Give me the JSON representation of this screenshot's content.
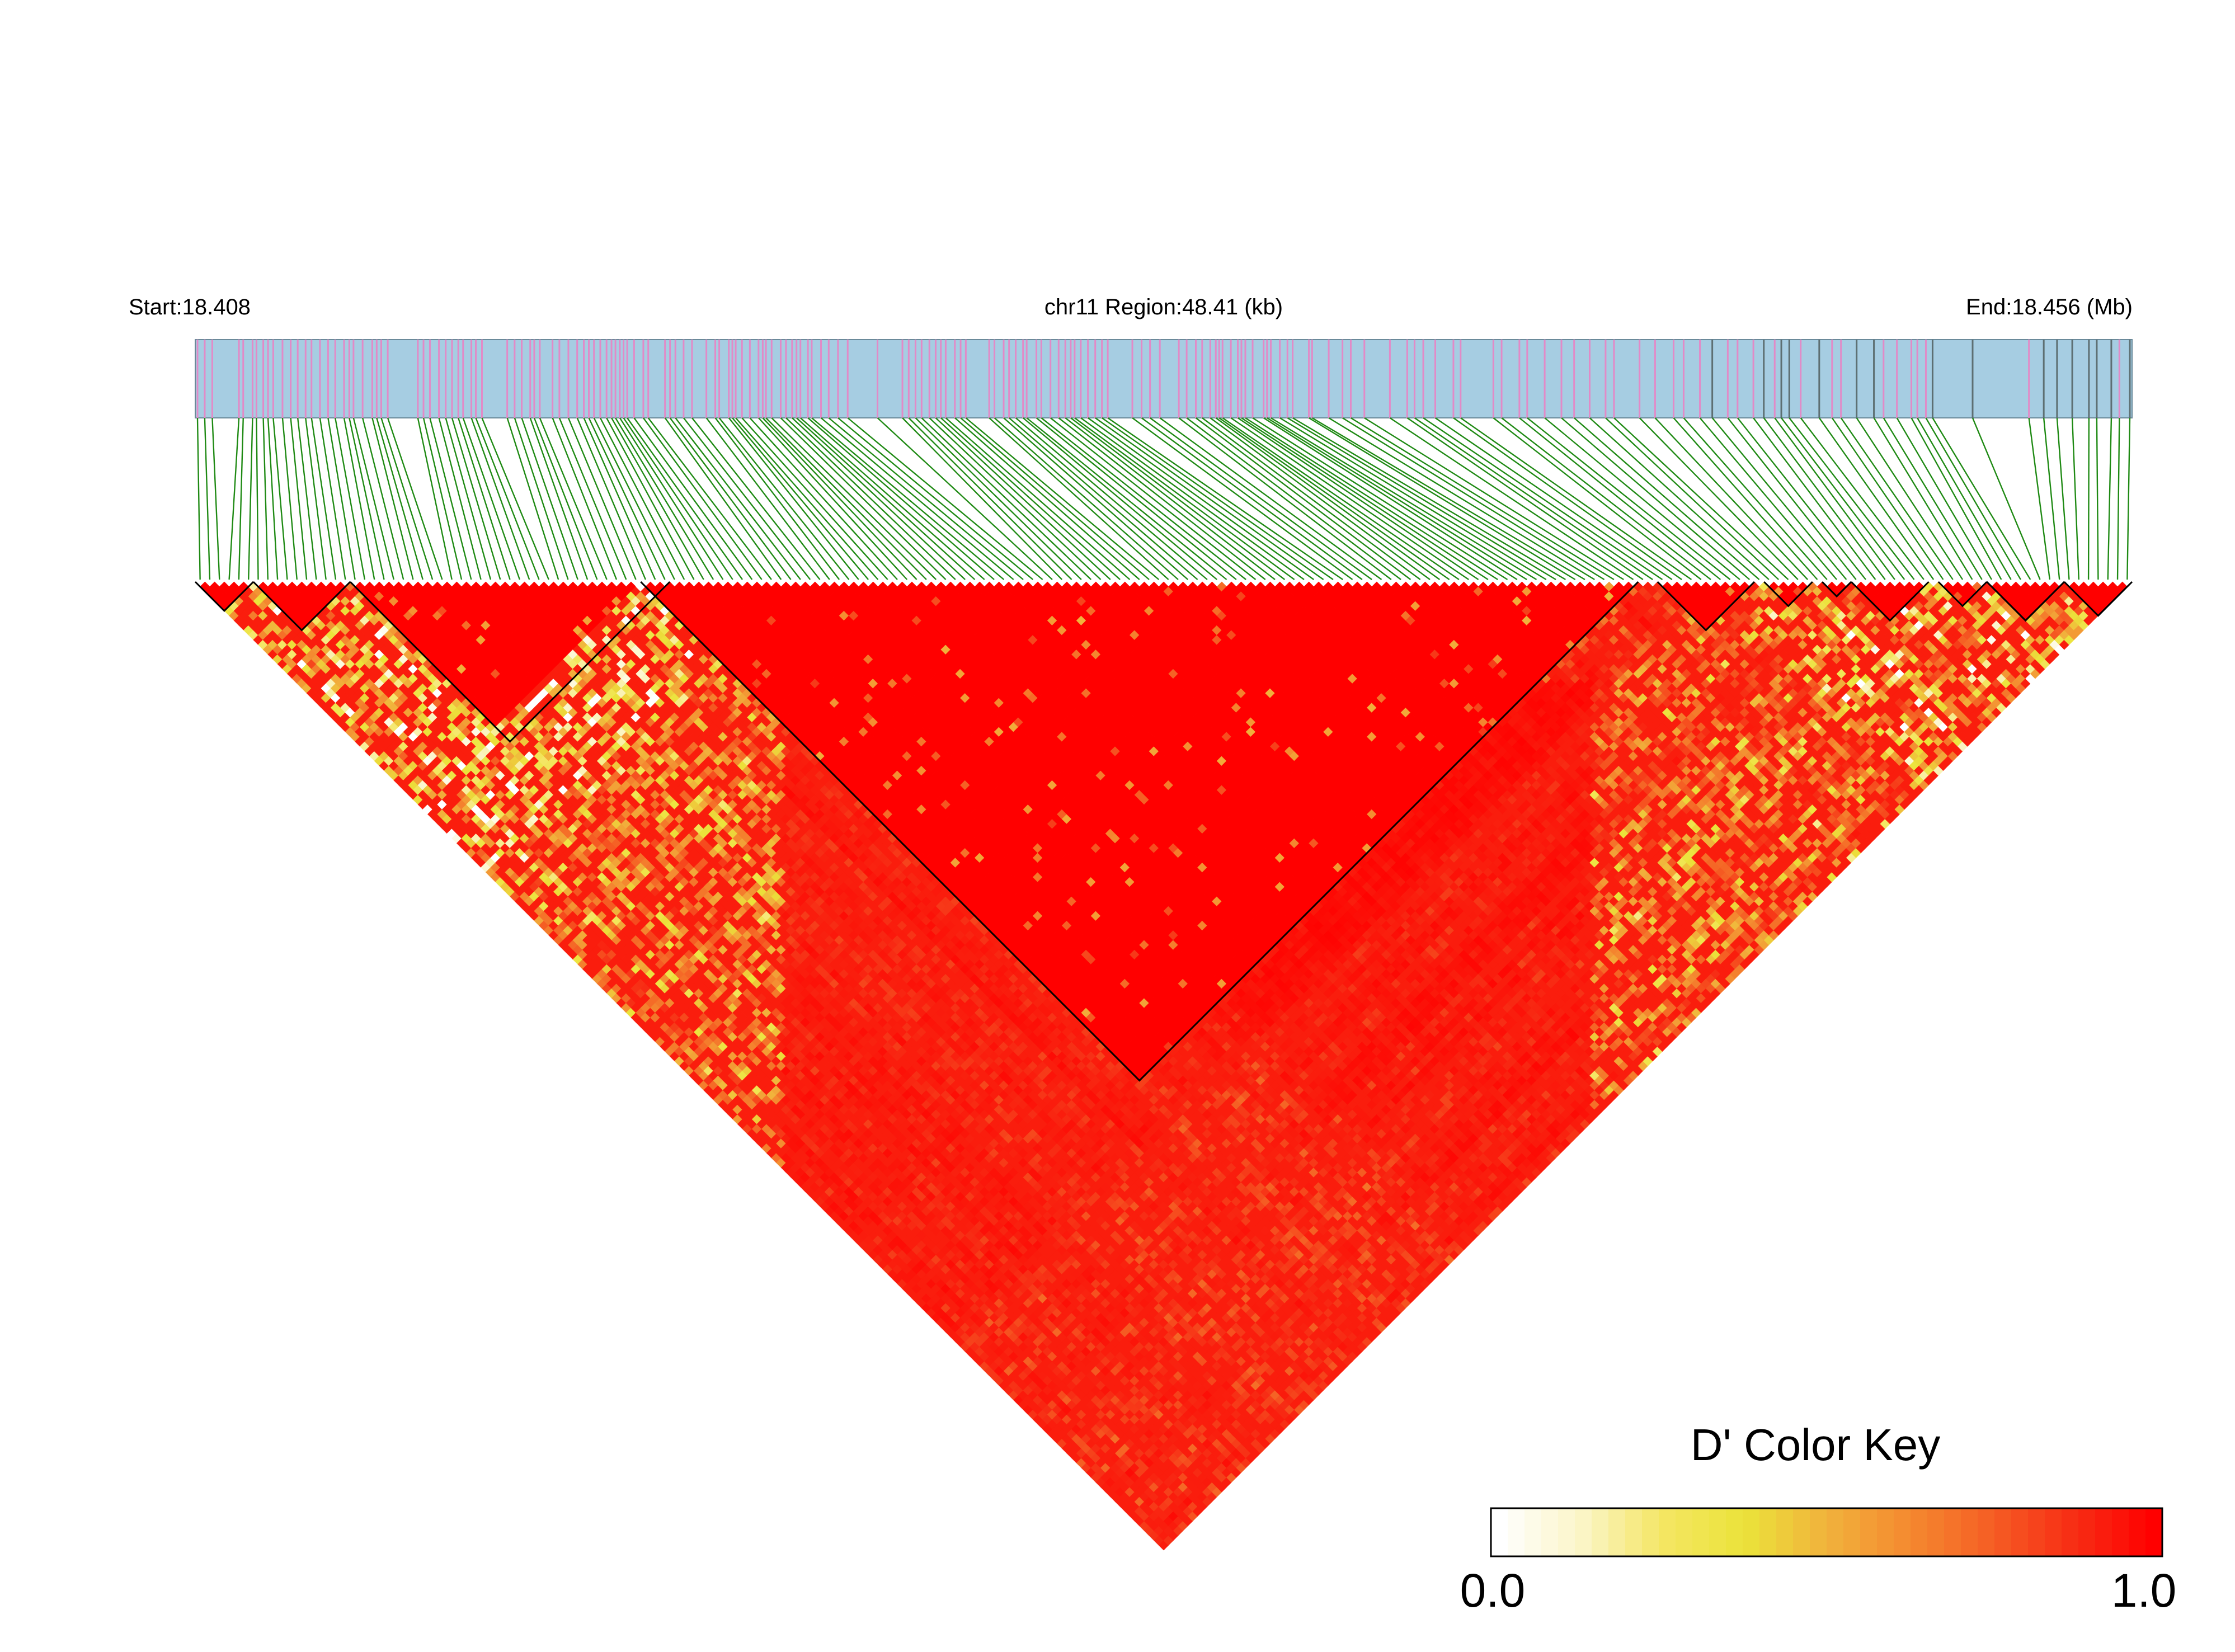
{
  "chart_data": {
    "type": "heatmap",
    "start_label": "Start:18.408",
    "region_label": "chr11 Region:48.41 (kb)",
    "end_label": "End:18.456 (Mb)",
    "x": [
      18.408,
      18.456
    ],
    "snp_count": 200,
    "block_count": 11,
    "color_key": {
      "title": "D' Color Key",
      "min_label": "0.0",
      "max_label": "1.0",
      "range": [
        0.0,
        1.0
      ],
      "stops": [
        "#ffffff",
        "#fbf5c8",
        "#f4e663",
        "#ebe33a",
        "#f1b23c",
        "#f48a30",
        "#f55f24",
        "#f72e15",
        "#ff0000"
      ]
    },
    "colors": {
      "region_bar": "#a6cde2",
      "snp_mark_low": "#e28ac7",
      "snp_mark_high": "#5d6f72",
      "connector": "#1f8a14",
      "block_outline": "#000000",
      "high_ld": "#ff0000"
    }
  }
}
